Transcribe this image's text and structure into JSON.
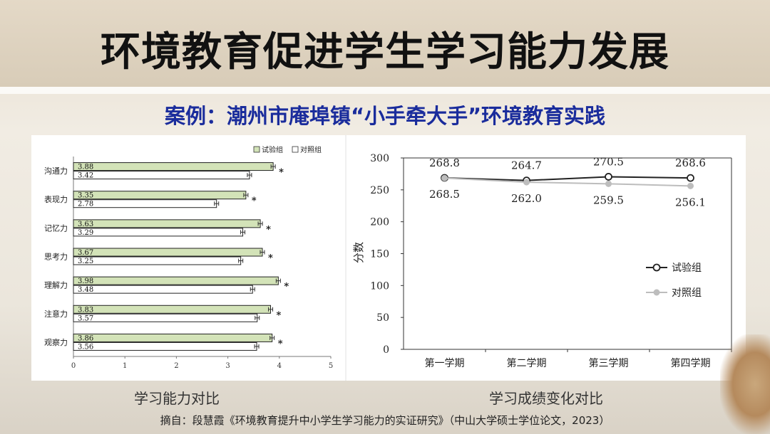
{
  "title": "环境教育促进学生学习能力发展",
  "subtitle": "案例：潮州市庵埠镇“小手牵大手”环境教育实践",
  "captions": {
    "left": "学习能力对比",
    "right": "学习成绩变化对比"
  },
  "source": "摘自：段慧霞《环境教育提升中小学生学习能力的实证研究》（中山大学硕士学位论文，2023）",
  "colors": {
    "experiment_bar": "#d3e3b8",
    "line_experiment": "#222222",
    "line_control": "#bdbdbd",
    "subtitle": "#1a2c9c"
  },
  "chart_data": [
    {
      "type": "bar",
      "orientation": "horizontal",
      "categories": [
        "沟通力",
        "表现力",
        "记忆力",
        "思考力",
        "理解力",
        "注意力",
        "观察力"
      ],
      "series": [
        {
          "name": "试验组",
          "values": [
            3.88,
            3.35,
            3.63,
            3.67,
            3.98,
            3.83,
            3.86
          ]
        },
        {
          "name": "对照组",
          "values": [
            3.42,
            2.78,
            3.29,
            3.25,
            3.48,
            3.57,
            3.56
          ]
        }
      ],
      "significance_marker": "*",
      "xlim": [
        0,
        5
      ],
      "xticks": [
        "0",
        "1",
        "2",
        "3",
        "4",
        "5"
      ],
      "legend": "top-right",
      "title": "",
      "xlabel": "",
      "ylabel": ""
    },
    {
      "type": "line",
      "categories": [
        "第一学期",
        "第二学期",
        "第三学期",
        "第四学期"
      ],
      "series": [
        {
          "name": "试验组",
          "values": [
            268.8,
            264.7,
            270.5,
            268.6
          ],
          "labels": [
            "268.8",
            "264.7",
            "270.5",
            "268.6"
          ]
        },
        {
          "name": "对照组",
          "values": [
            268.5,
            262.0,
            259.5,
            256.1
          ],
          "labels": [
            "268.5",
            "262.0",
            "259.5",
            "256.1"
          ]
        }
      ],
      "ylim": [
        0,
        300
      ],
      "yticks": [
        "0",
        "50",
        "100",
        "150",
        "200",
        "250",
        "300"
      ],
      "ylabel": "分数",
      "xlabel": "",
      "title": "",
      "legend": "right"
    }
  ]
}
